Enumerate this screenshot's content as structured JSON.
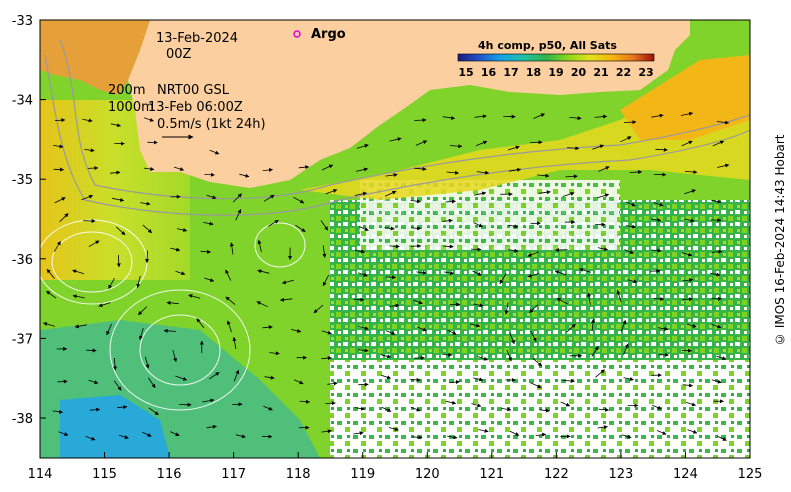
{
  "map": {
    "annotations": {
      "date": "13-Feb-2024",
      "time": "00Z",
      "depth_a": "200m",
      "depth_b": "1000m",
      "source": "NRT00 GSL",
      "source_time": "13-Feb 06:00Z",
      "scale_label": "0.5m/s (1kt 24h)",
      "argo_label": "Argo"
    },
    "colorbar": {
      "title": "4h comp, p50, All Sats",
      "ticks": [
        "15",
        "16",
        "17",
        "18",
        "19",
        "20",
        "21",
        "22",
        "23"
      ]
    },
    "credit": "© IMOS 16-Feb-2024 14:43 Hobart",
    "x_ticks": [
      "114",
      "115",
      "116",
      "117",
      "118",
      "119",
      "120",
      "121",
      "122",
      "123",
      "124",
      "125"
    ],
    "y_ticks": [
      "-33",
      "-34",
      "-35",
      "-36",
      "-37",
      "-38"
    ],
    "colors": {
      "land": "#fbcf9f",
      "argo_marker": "#e000e0",
      "coast_line": "#888888"
    }
  }
}
